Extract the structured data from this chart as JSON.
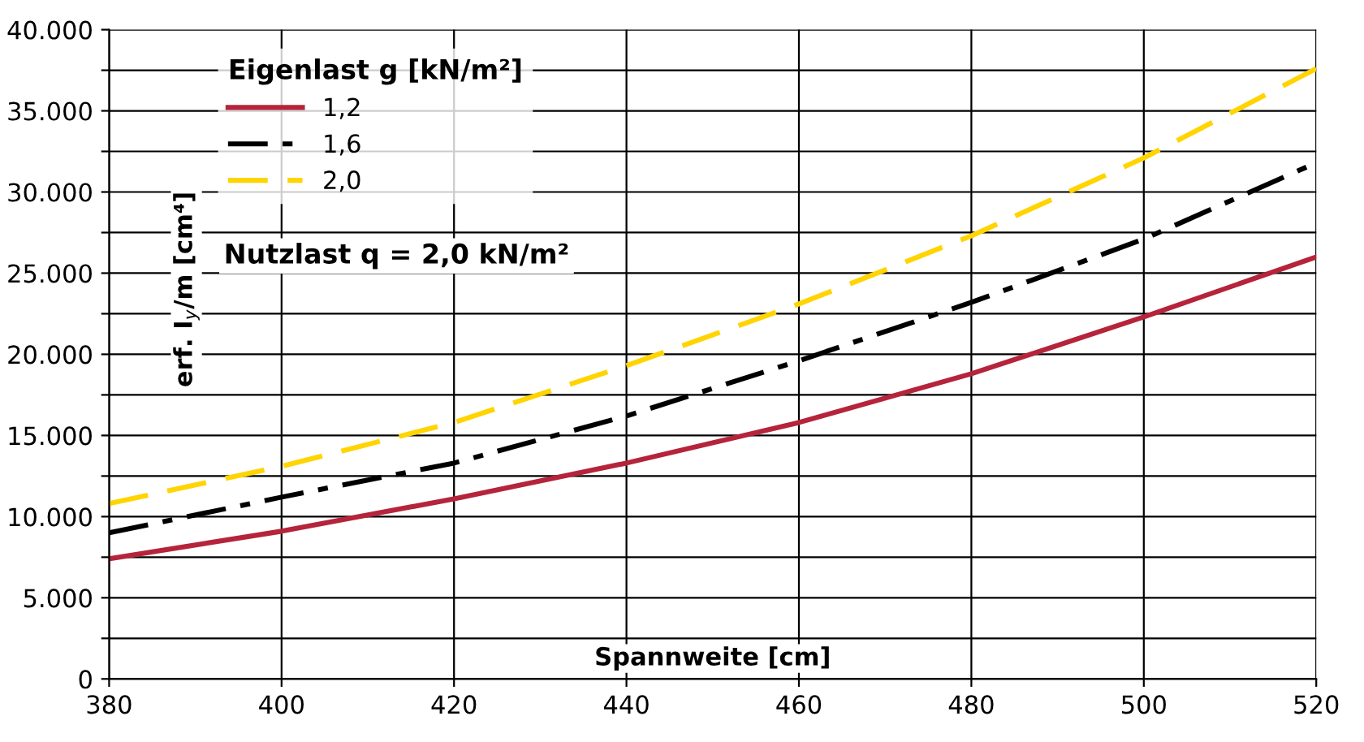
{
  "chart_data": {
    "type": "line",
    "xlabel": "Spannweite [cm]",
    "ylabel": "erf. I$_{y}$/m [cm⁴]",
    "legend_title": "Eigenlast g [kN/m²]",
    "annotations": [
      "Nutzlast q = 2,0 kN/m²"
    ],
    "x": [
      380,
      400,
      420,
      440,
      460,
      480,
      500,
      520
    ],
    "series": [
      {
        "name": "1,2",
        "color": "#b5243b",
        "line_style": "solid",
        "values": [
          7400,
          9100,
          11100,
          13300,
          15800,
          18800,
          22300,
          26000
        ]
      },
      {
        "name": "1,6",
        "color": "#000000",
        "line_style": "dashdot",
        "values": [
          9000,
          11200,
          13300,
          16200,
          19600,
          23200,
          27100,
          31800
        ]
      },
      {
        "name": "2,0",
        "color": "#ffd400",
        "line_style": "dashed",
        "values": [
          10800,
          13100,
          15800,
          19300,
          23100,
          27300,
          32100,
          37600
        ]
      }
    ],
    "xlim": [
      380,
      520
    ],
    "xticks": [
      380,
      400,
      420,
      440,
      460,
      480,
      500,
      520
    ],
    "ylim": [
      0,
      40000
    ],
    "yticks": [
      {
        "value": 0,
        "label": "0"
      },
      {
        "value": 2500,
        "label": null
      },
      {
        "value": 5000,
        "label": "5.000"
      },
      {
        "value": 7500,
        "label": null
      },
      {
        "value": 10000,
        "label": "10.000"
      },
      {
        "value": 12500,
        "label": null
      },
      {
        "value": 15000,
        "label": "15.000"
      },
      {
        "value": 17500,
        "label": null
      },
      {
        "value": 20000,
        "label": "20.000"
      },
      {
        "value": 22500,
        "label": null
      },
      {
        "value": 25000,
        "label": "25.000"
      },
      {
        "value": 27500,
        "label": null
      },
      {
        "value": 30000,
        "label": "30.000"
      },
      {
        "value": 32500,
        "label": null
      },
      {
        "value": 35000,
        "label": "35.000"
      },
      {
        "value": 37500,
        "label": null
      },
      {
        "value": 40000,
        "label": "40.000"
      }
    ],
    "grid": true,
    "legend": "top left"
  }
}
